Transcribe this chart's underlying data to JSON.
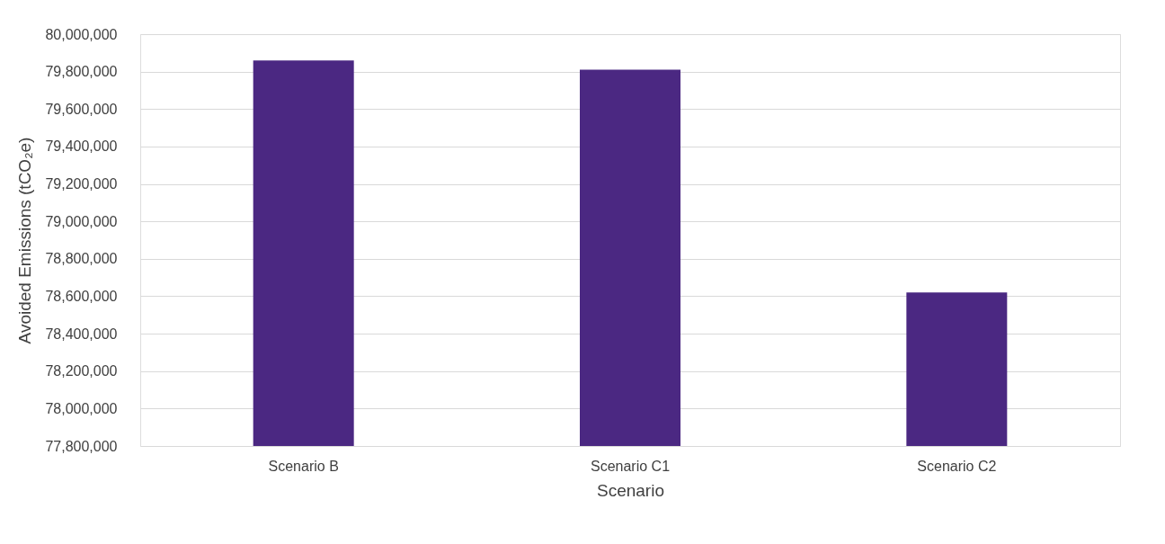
{
  "chart_data": {
    "type": "bar",
    "xlabel": "Scenario",
    "ylabel": "Avoided Emissions (tCO₂e)",
    "categories": [
      "Scenario B",
      "Scenario C1",
      "Scenario C2"
    ],
    "values": [
      79860000,
      79810000,
      78620000
    ],
    "color": "#4b2882",
    "ylim": [
      77800000,
      80000000
    ],
    "yticks": [
      {
        "value": 77800000,
        "label": "77,800,000"
      },
      {
        "value": 78000000,
        "label": "78,000,000"
      },
      {
        "value": 78200000,
        "label": "78,200,000"
      },
      {
        "value": 78400000,
        "label": "78,400,000"
      },
      {
        "value": 78600000,
        "label": "78,600,000"
      },
      {
        "value": 78800000,
        "label": "78,800,000"
      },
      {
        "value": 79000000,
        "label": "79,000,000"
      },
      {
        "value": 79200000,
        "label": "79,200,000"
      },
      {
        "value": 79400000,
        "label": "79,400,000"
      },
      {
        "value": 79600000,
        "label": "79,600,000"
      },
      {
        "value": 79800000,
        "label": "79,800,000"
      },
      {
        "value": 80000000,
        "label": "80,000,000"
      }
    ],
    "grid": "y"
  }
}
